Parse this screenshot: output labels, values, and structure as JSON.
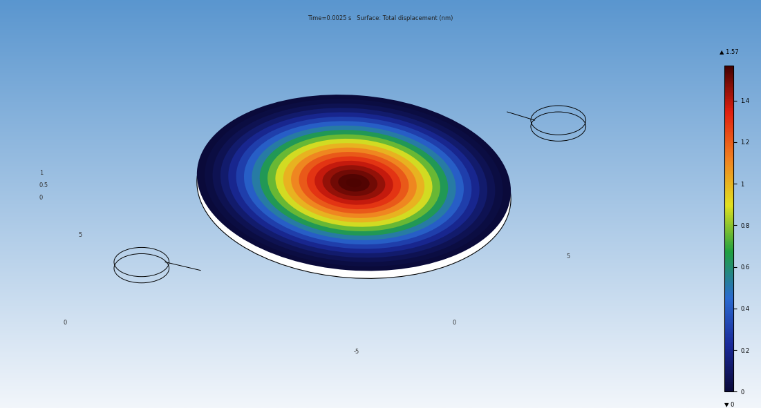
{
  "chart_data": {
    "type": "surface",
    "title": "Time=0.0025 s   Surface: Total displacement (nm)",
    "radius": [
      0,
      0.25,
      0.5,
      0.75,
      1,
      1.25,
      1.5,
      1.75,
      2,
      2.25,
      2.5,
      2.75,
      3,
      3.25,
      3.5,
      3.75,
      4,
      4.25,
      4.5,
      4.75,
      5
    ],
    "displacement": [
      1.57,
      1.55,
      1.54,
      1.5,
      1.45,
      1.38,
      1.3,
      1.21,
      1.11,
      1.0,
      0.88,
      0.76,
      0.64,
      0.52,
      0.41,
      0.3,
      0.2,
      0.12,
      0.06,
      0.02,
      0
    ],
    "colorbar_range": [
      0,
      1.57
    ],
    "colorbar_ticks": [
      0,
      0.2,
      0.4,
      0.6,
      0.8,
      1,
      1.2,
      1.4
    ],
    "max": {
      "value": 1.57,
      "label": "▲ 1.57"
    },
    "min": {
      "value": 0,
      "label": "▼ 0"
    },
    "axis_ticks": {
      "z": [
        1,
        0.5,
        0
      ],
      "x": [
        5,
        0,
        -5
      ],
      "y": [
        0,
        5
      ]
    }
  }
}
